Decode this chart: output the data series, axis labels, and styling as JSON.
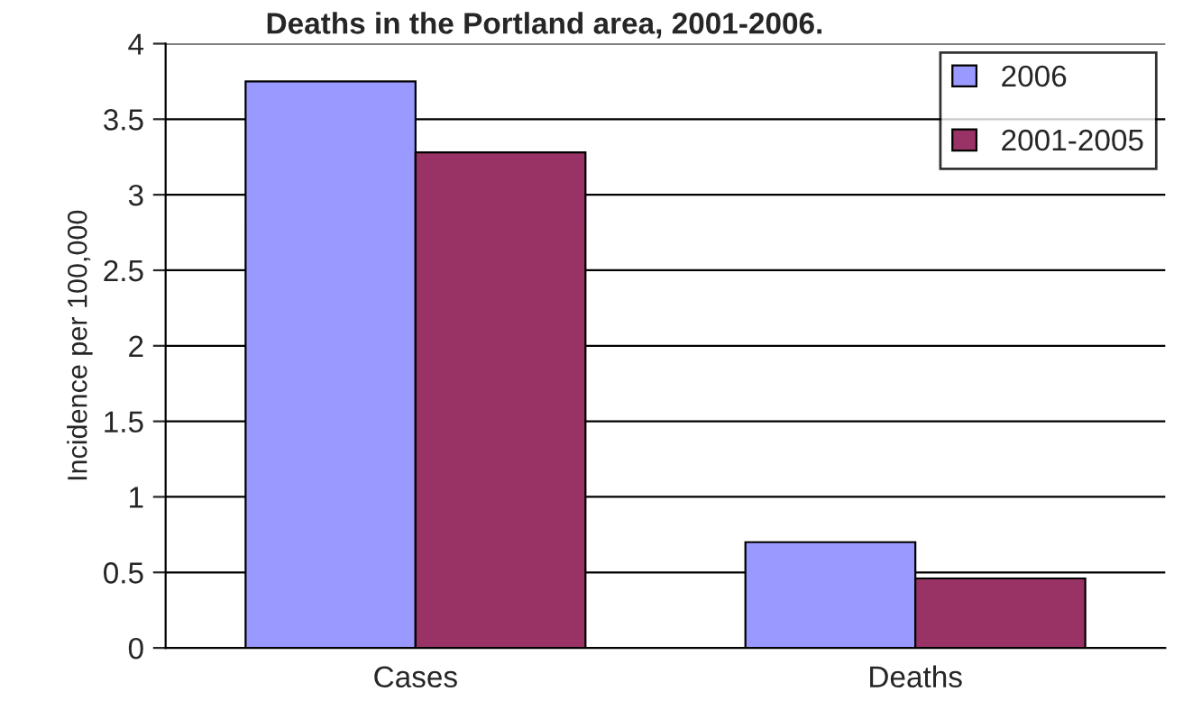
{
  "chart_data": {
    "type": "bar",
    "title": "Deaths in the Portland area, 2001-2006.",
    "ylabel": "Incidence per 100,000",
    "categories": [
      "Cases",
      "Deaths"
    ],
    "series": [
      {
        "name": "2006",
        "color": "#9999ff",
        "values": [
          3.75,
          0.7
        ]
      },
      {
        "name": "2001-2005",
        "color": "#993366",
        "values": [
          3.28,
          0.46
        ]
      }
    ],
    "ylim": [
      0,
      4
    ],
    "yticks": [
      0,
      0.5,
      1,
      1.5,
      2,
      2.5,
      3,
      3.5,
      4
    ],
    "grid": "y",
    "legend": "top right"
  }
}
